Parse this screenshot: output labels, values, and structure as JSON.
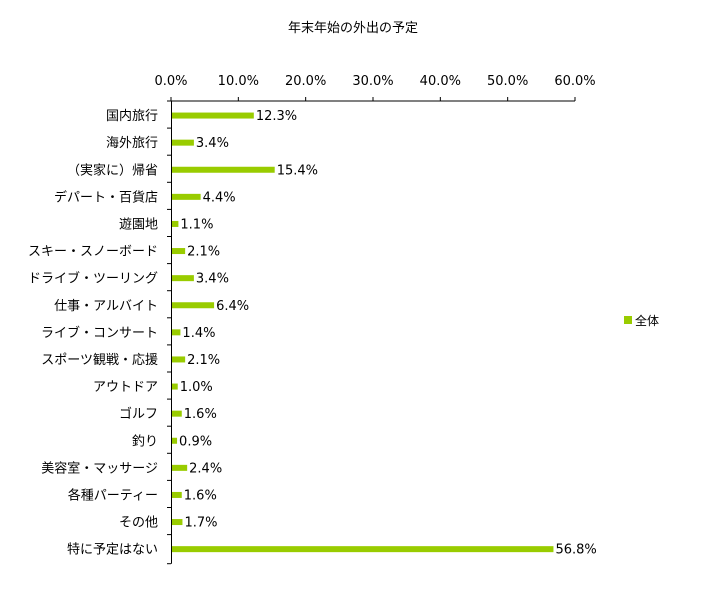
{
  "chart_data": {
    "type": "bar",
    "orientation": "horizontal",
    "title": "年末年始の外出の予定",
    "xlabel": "",
    "ylabel": "",
    "xlim": [
      0,
      60
    ],
    "x_ticks": [
      "0.0%",
      "10.0%",
      "20.0%",
      "30.0%",
      "40.0%",
      "50.0%",
      "60.0%"
    ],
    "x_axis_position": "top",
    "grid": false,
    "categories": [
      "国内旅行",
      "海外旅行",
      "（実家に）帰省",
      "デパート・百貨店",
      "遊園地",
      "スキー・スノーボード",
      "ドライブ・ツーリング",
      "仕事・アルバイト",
      "ライブ・コンサート",
      "スポーツ観戦・応援",
      "アウトドア",
      "ゴルフ",
      "釣り",
      "美容室・マッサージ",
      "各種パーティー",
      "その他",
      "特に予定はない"
    ],
    "series": [
      {
        "name": "全体",
        "color": "#99cc00",
        "values": [
          12.3,
          3.4,
          15.4,
          4.4,
          1.1,
          2.1,
          3.4,
          6.4,
          1.4,
          2.1,
          1.0,
          1.6,
          0.9,
          2.4,
          1.6,
          1.7,
          56.8
        ],
        "labels": [
          "12.3%",
          "3.4%",
          "15.4%",
          "4.4%",
          "1.1%",
          "2.1%",
          "3.4%",
          "6.4%",
          "1.4%",
          "2.1%",
          "1.0%",
          "1.6%",
          "0.9%",
          "2.4%",
          "1.6%",
          "1.7%",
          "56.8%"
        ]
      }
    ],
    "legend": {
      "position": "right",
      "labels": [
        "全体"
      ]
    }
  }
}
